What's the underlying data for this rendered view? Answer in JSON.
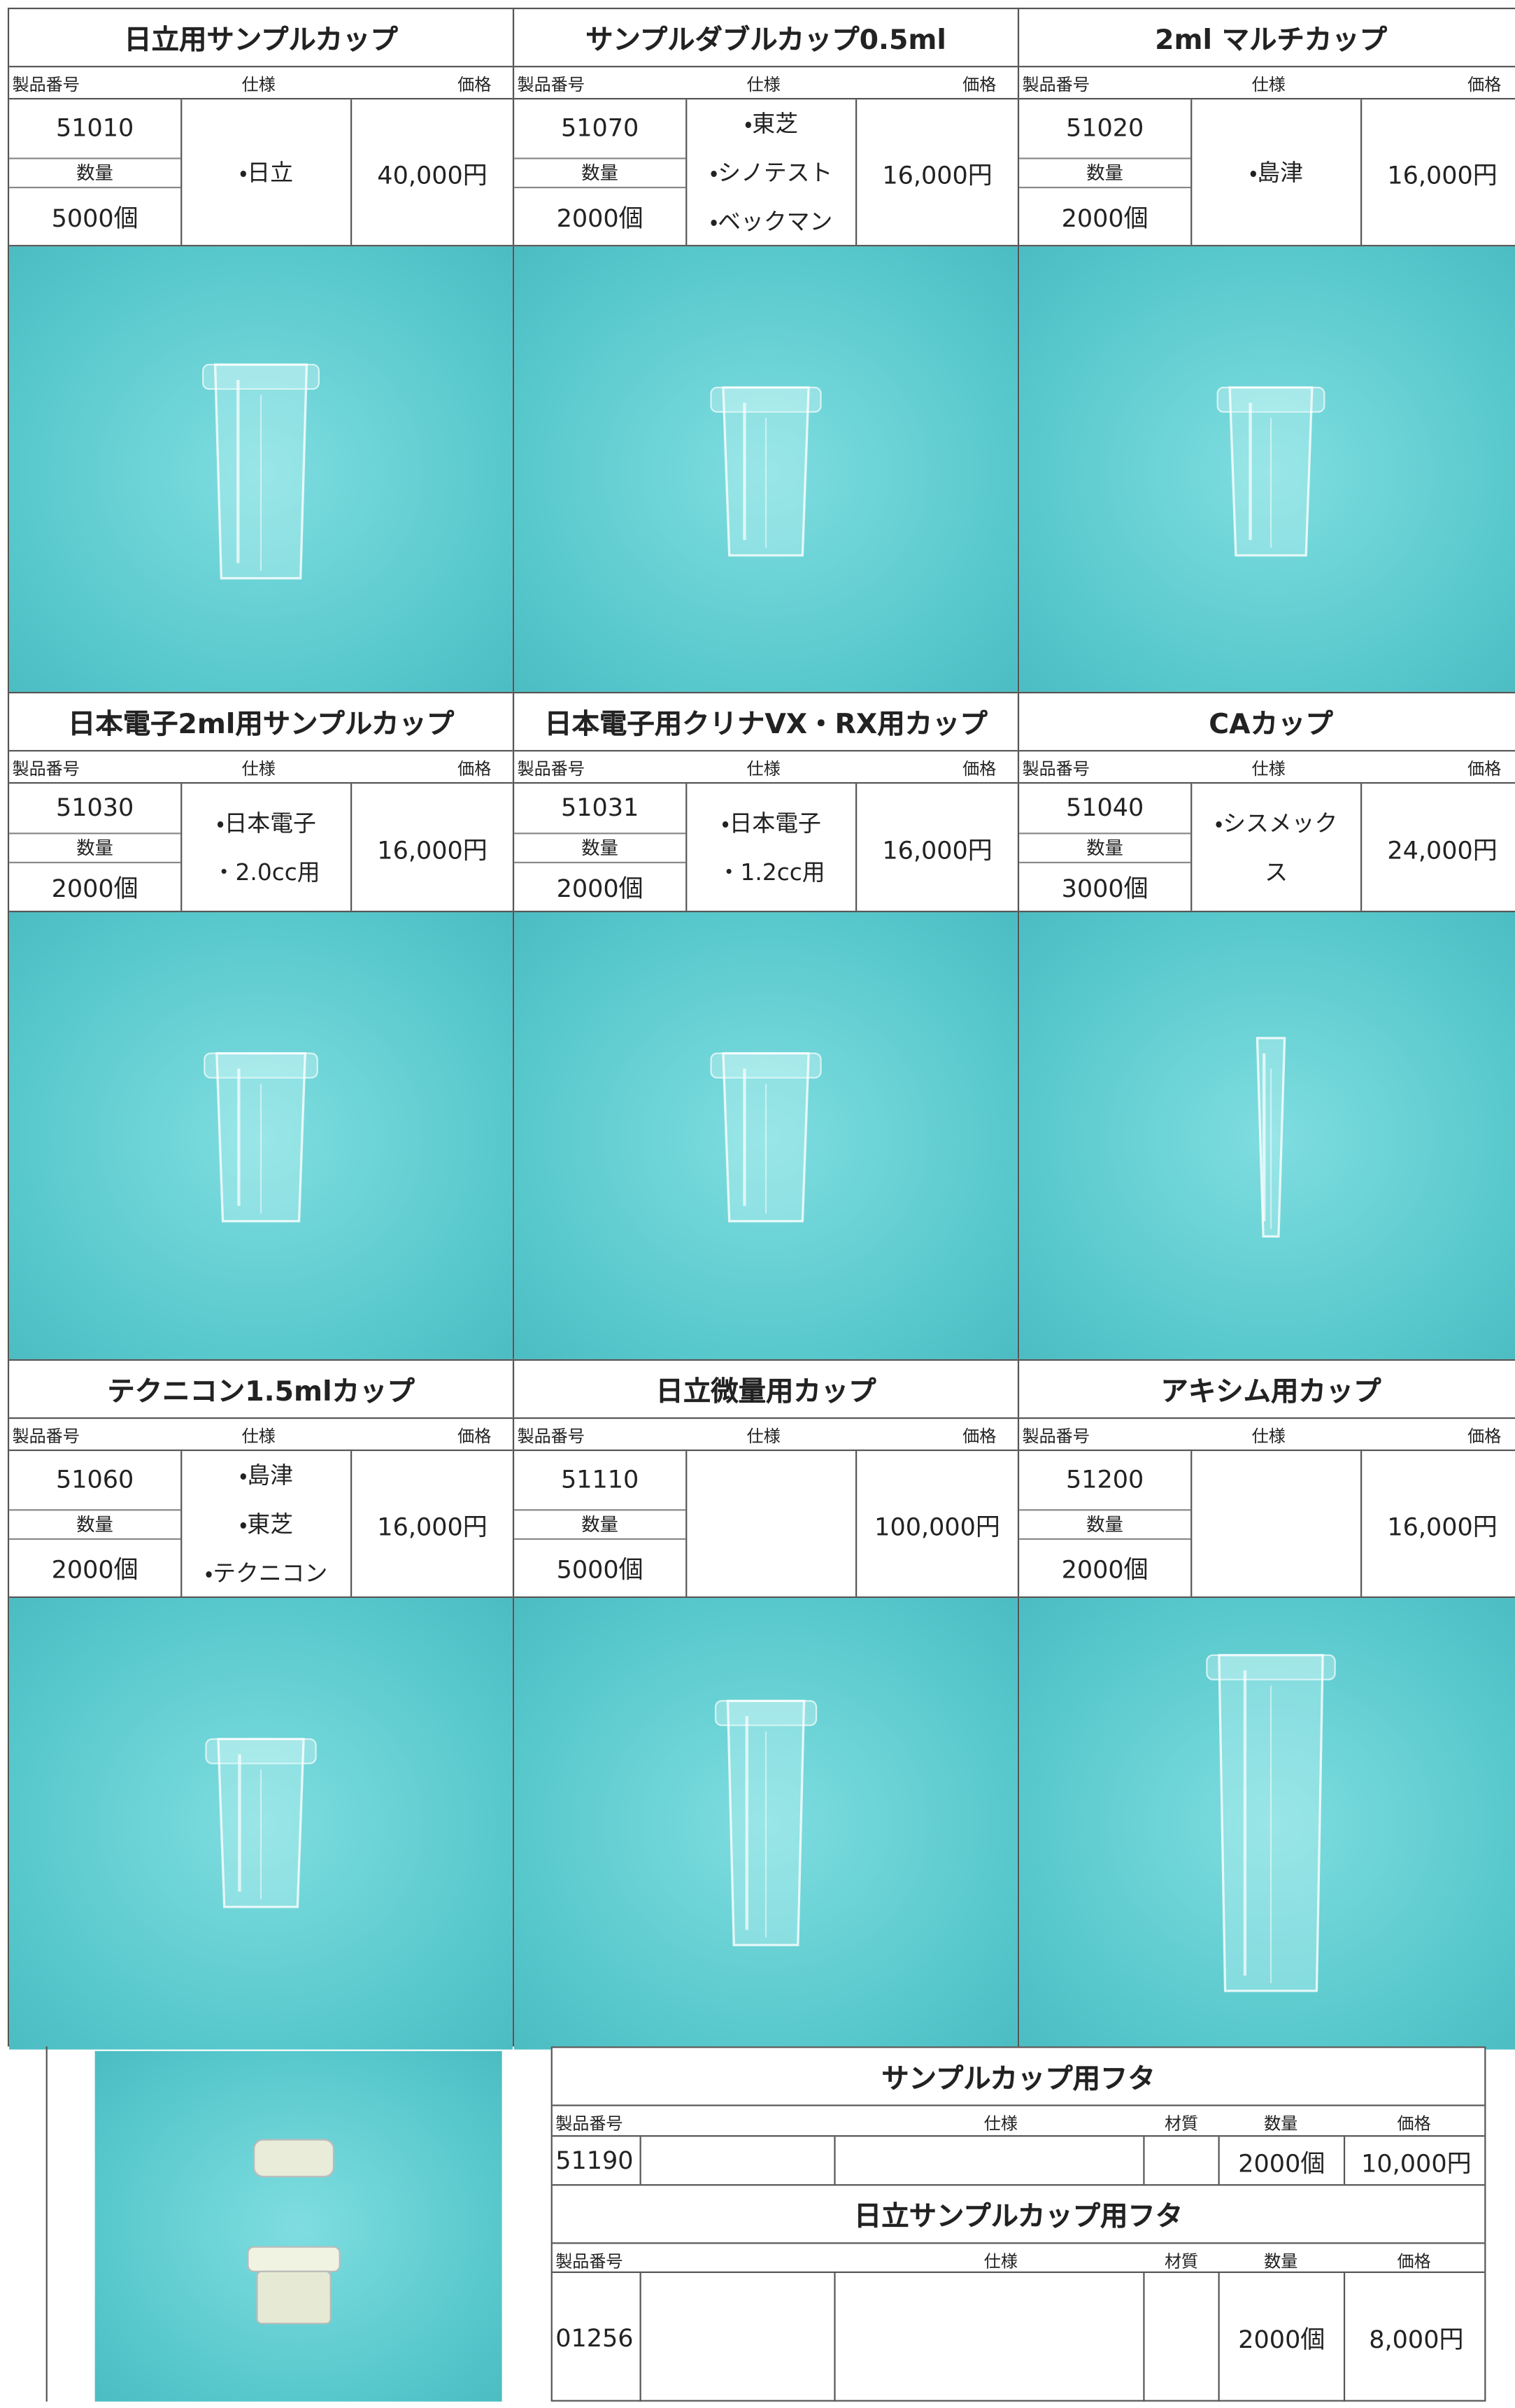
{
  "labels": {
    "code": "製品番号",
    "spec": "仕様",
    "price": "価格",
    "qty": "数量",
    "material": "材質"
  },
  "products": [
    {
      "title": "日立用サンプルカップ",
      "code": "51010",
      "qty": "5000個",
      "spec": [
        "・日立"
      ],
      "price": "40,000円"
    },
    {
      "title": "サンプルダブルカップ0.5ml",
      "code": "51070",
      "qty": "2000個",
      "spec": [
        "・東芝",
        "・シノテスト",
        "・ベックマン"
      ],
      "price": "16,000円"
    },
    {
      "title": "2ml マルチカップ",
      "code": "51020",
      "qty": "2000個",
      "spec": [
        "・島津"
      ],
      "price": "16,000円"
    },
    {
      "title": "日本電子2ml用サンプルカップ",
      "code": "51030",
      "qty": "2000個",
      "spec": [
        "・日本電子",
        "・2.0cc用"
      ],
      "price": "16,000円"
    },
    {
      "title": "日本電子用クリナVX・RX用カップ",
      "code": "51031",
      "qty": "2000個",
      "spec": [
        "・日本電子",
        "・1.2cc用"
      ],
      "price": "16,000円"
    },
    {
      "title": "CAカップ",
      "code": "51040",
      "qty": "3000個",
      "spec": [
        "・シスメック",
        "ス"
      ],
      "price": "24,000円"
    },
    {
      "title": "テクニコン1.5mlカップ",
      "code": "51060",
      "qty": "2000個",
      "spec": [
        "・島津",
        "・東芝",
        "・テクニコン"
      ],
      "price": "16,000円"
    },
    {
      "title": "日立微量用カップ",
      "code": "51110",
      "qty": "5000個",
      "spec": [],
      "price": "100,000円"
    },
    {
      "title": "アキシム用カップ",
      "code": "51200",
      "qty": "2000個",
      "spec": [],
      "price": "16,000円"
    }
  ],
  "lids": [
    {
      "title": "サンプルカップ用フタ",
      "code": "51190",
      "qty": "2000個",
      "price": "10,000円"
    },
    {
      "title": "日立サンプルカップ用フタ",
      "code": "01256",
      "qty": "2000個",
      "price": "8,000円"
    }
  ]
}
